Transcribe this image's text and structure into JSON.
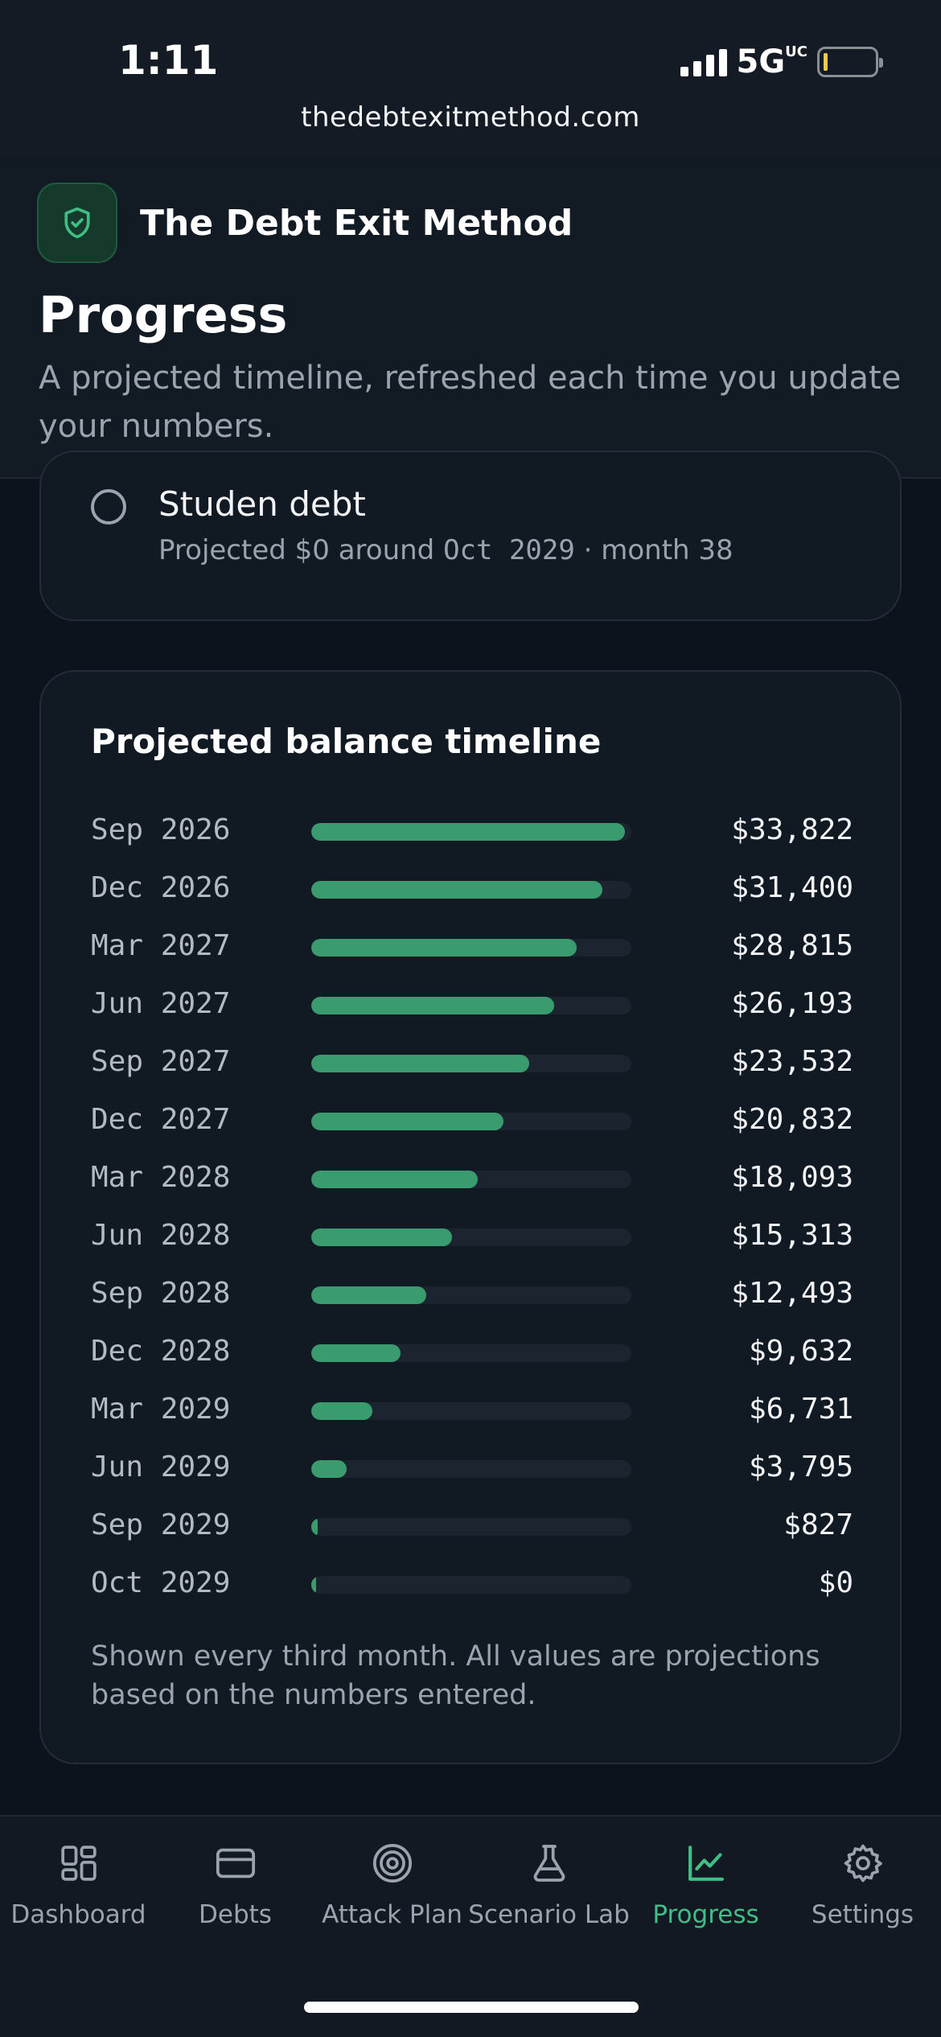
{
  "status_bar": {
    "time": "1:11",
    "network": "5G",
    "network_suffix": "UC",
    "url": "thedebtexitmethod.com"
  },
  "header": {
    "brand": "The Debt Exit Method",
    "brand_icon": "shield-check-icon",
    "title": "Progress",
    "subtitle": "A projected timeline, refreshed each time you update your numbers."
  },
  "debt_item": {
    "name": "Studen debt",
    "meta_prefix": "Projected $0 around ",
    "meta_date": "Oct 2029",
    "meta_suffix": " · month 38"
  },
  "timeline": {
    "title": "Projected balance timeline",
    "note": "Shown every third month. All values are projections based on the numbers entered.",
    "rows": [
      {
        "date": "Sep 2026",
        "value": "$33,822",
        "fraction": 0.98
      },
      {
        "date": "Dec 2026",
        "value": "$31,400",
        "fraction": 0.91
      },
      {
        "date": "Mar 2027",
        "value": "$28,815",
        "fraction": 0.83
      },
      {
        "date": "Jun 2027",
        "value": "$26,193",
        "fraction": 0.76
      },
      {
        "date": "Sep 2027",
        "value": "$23,532",
        "fraction": 0.68
      },
      {
        "date": "Dec 2027",
        "value": "$20,832",
        "fraction": 0.6
      },
      {
        "date": "Mar 2028",
        "value": "$18,093",
        "fraction": 0.52
      },
      {
        "date": "Jun 2028",
        "value": "$15,313",
        "fraction": 0.44
      },
      {
        "date": "Sep 2028",
        "value": "$12,493",
        "fraction": 0.36
      },
      {
        "date": "Dec 2028",
        "value": "$9,632",
        "fraction": 0.28
      },
      {
        "date": "Mar 2029",
        "value": "$6,731",
        "fraction": 0.19
      },
      {
        "date": "Jun 2029",
        "value": "$3,795",
        "fraction": 0.11
      },
      {
        "date": "Sep 2029",
        "value": "$827",
        "fraction": 0.02
      },
      {
        "date": "Oct 2029",
        "value": "$0",
        "fraction": 0.01
      }
    ]
  },
  "nav": {
    "items": [
      {
        "label": "Dashboard",
        "icon": "dashboard-grid-icon",
        "active": false
      },
      {
        "label": "Debts",
        "icon": "credit-card-icon",
        "active": false
      },
      {
        "label": "Attack Plan",
        "icon": "target-icon",
        "active": false
      },
      {
        "label": "Scenario Lab",
        "icon": "flask-icon",
        "active": false
      },
      {
        "label": "Progress",
        "icon": "chart-line-icon",
        "active": true
      },
      {
        "label": "Settings",
        "icon": "gear-icon",
        "active": false
      }
    ]
  },
  "colors": {
    "accent": "#3fbf85",
    "bar_fill": "#3a9b6e",
    "background": "#0d131c"
  }
}
